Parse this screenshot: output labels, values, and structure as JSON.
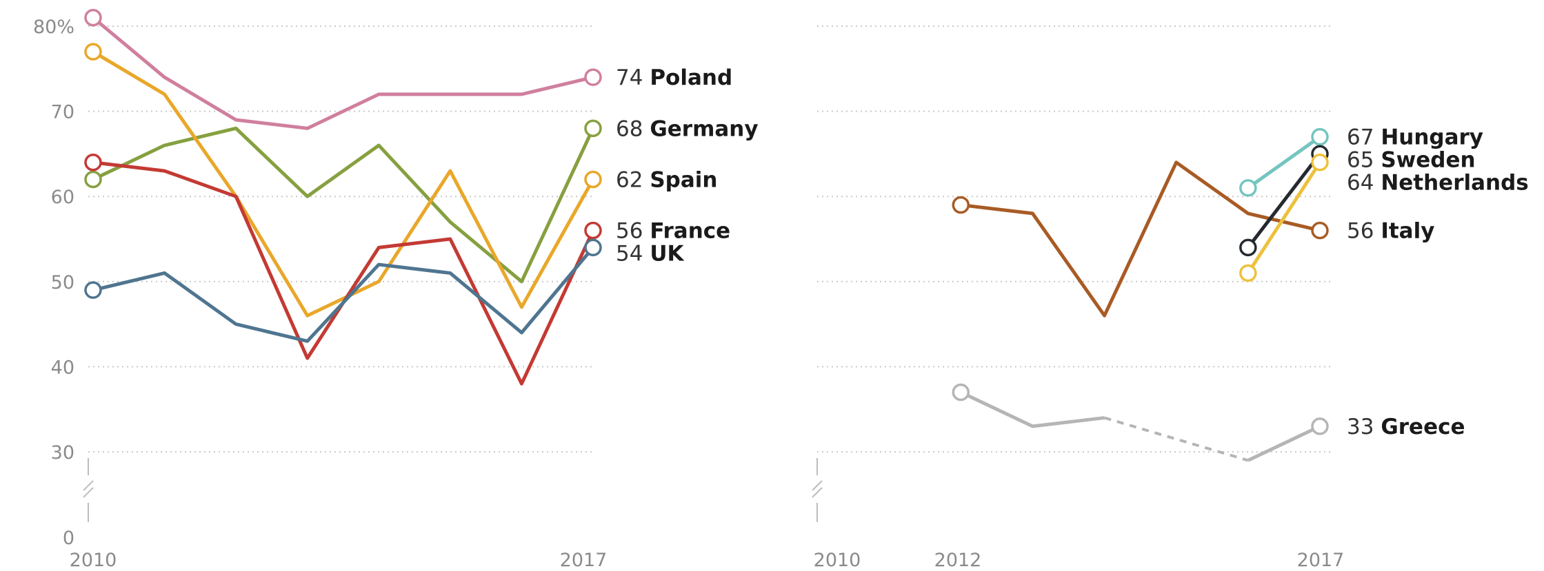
{
  "colors": {
    "Poland": "#d07f9e",
    "Germany": "#86a040",
    "Spain": "#e9a72a",
    "France": "#c33a33",
    "UK": "#4f7590",
    "Italy": "#a85b24",
    "Greece": "#b5b5b5",
    "Hungary": "#74c5c0",
    "Sweden": "#262a30",
    "Netherlands": "#edc13c"
  },
  "chart_data": [
    {
      "type": "line",
      "y_ticks": [
        "80%",
        "70",
        "60",
        "50",
        "40",
        "30",
        "0"
      ],
      "ylim": [
        0,
        80
      ],
      "axis_break": true,
      "x_tick_labels": [
        "2010",
        "2017"
      ],
      "xlim": [
        2010,
        2017
      ],
      "grid": true,
      "series": [
        {
          "name": "Poland",
          "end_value": "74",
          "x": [
            2010,
            2011,
            2012,
            2013,
            2014,
            2015,
            2016,
            2017
          ],
          "values": [
            81,
            74,
            69,
            68,
            72,
            72,
            72,
            74
          ]
        },
        {
          "name": "Germany",
          "end_value": "68",
          "x": [
            2010,
            2011,
            2012,
            2013,
            2014,
            2015,
            2016,
            2017
          ],
          "values": [
            62,
            66,
            68,
            60,
            66,
            57,
            50,
            68
          ]
        },
        {
          "name": "Spain",
          "end_value": "62",
          "x": [
            2010,
            2011,
            2012,
            2013,
            2014,
            2015,
            2016,
            2017
          ],
          "values": [
            77,
            72,
            60,
            46,
            50,
            63,
            47,
            62
          ]
        },
        {
          "name": "France",
          "end_value": "56",
          "x": [
            2010,
            2011,
            2012,
            2013,
            2014,
            2015,
            2016,
            2017
          ],
          "values": [
            64,
            63,
            60,
            41,
            54,
            55,
            38,
            56
          ]
        },
        {
          "name": "UK",
          "end_value": "54",
          "x": [
            2010,
            2011,
            2012,
            2013,
            2014,
            2015,
            2016,
            2017
          ],
          "values": [
            49,
            51,
            45,
            43,
            52,
            51,
            44,
            54
          ]
        }
      ]
    },
    {
      "type": "line",
      "ylim": [
        0,
        80
      ],
      "axis_break": true,
      "x_tick_labels": [
        "2010",
        "2012",
        "2017"
      ],
      "xlim": [
        2010,
        2017
      ],
      "grid": true,
      "series": [
        {
          "name": "Italy",
          "end_value": "56",
          "x": [
            2012,
            2013,
            2014,
            2015,
            2016,
            2017
          ],
          "values": [
            59,
            58,
            46,
            64,
            58,
            56
          ]
        },
        {
          "name": "Greece",
          "end_value": "33",
          "x": [
            2012,
            2013,
            2014,
            2016,
            2017
          ],
          "values": [
            37,
            33,
            34,
            27,
            33
          ],
          "dashed_after_index": 2
        },
        {
          "name": "Hungary",
          "end_value": "67",
          "x": [
            2016,
            2017
          ],
          "values": [
            61,
            67
          ]
        },
        {
          "name": "Sweden",
          "end_value": "65",
          "x": [
            2016,
            2017
          ],
          "values": [
            54,
            65
          ]
        },
        {
          "name": "Netherlands",
          "end_value": "64",
          "x": [
            2016,
            2017
          ],
          "values": [
            51,
            64
          ]
        }
      ]
    }
  ]
}
